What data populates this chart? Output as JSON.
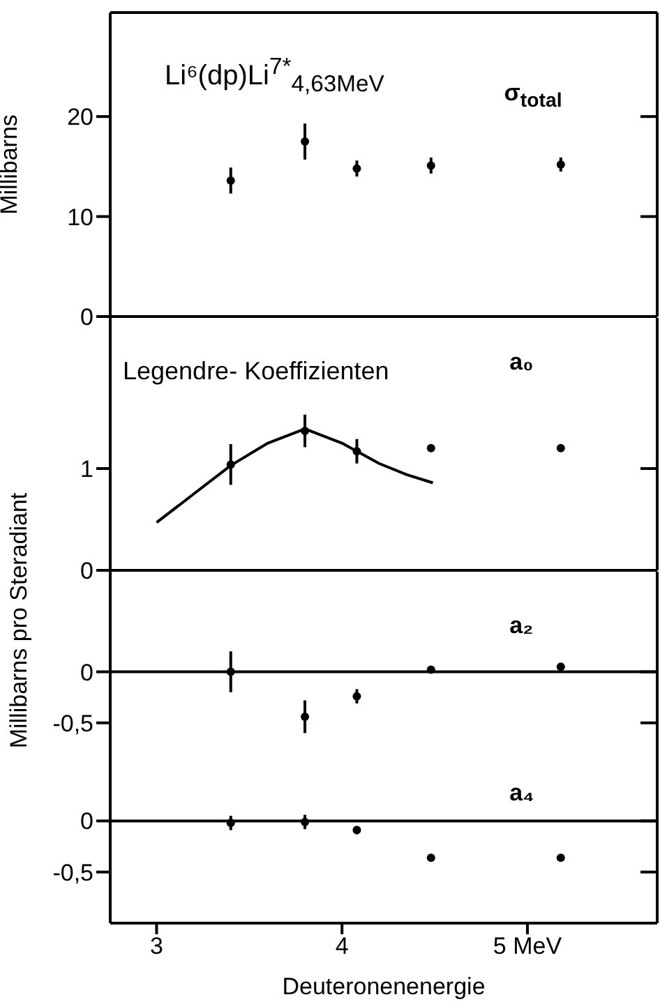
{
  "chart_data": [
    {
      "type": "scatter",
      "title": "Li⁶(dp)Li$^{7*}$$_{4,63MeV}$",
      "ylabel": "Millibarns",
      "x": [
        3.4,
        3.8,
        4.08,
        4.48,
        5.18
      ],
      "xlim": [
        2.75,
        5.7
      ],
      "xticks": [
        3,
        4,
        5
      ],
      "ylim": [
        0,
        30.4
      ],
      "yticks": [
        0,
        10,
        20
      ],
      "tick_labels": "y",
      "marker": "circle",
      "series": [
        {
          "name": "σ$_{total}$",
          "color": "#000000",
          "values": [
            13.6,
            17.5,
            14.8,
            15.1,
            15.2
          ],
          "errors": [
            1.3,
            1.8,
            0.8,
            0.8,
            0.7
          ]
        }
      ]
    },
    {
      "type": "scatter",
      "ylabel": "Millibarns pro Steradiant",
      "annotations": [
        "Legendre- Koeffizienten"
      ],
      "x": [
        3.4,
        3.8,
        4.08,
        4.48,
        5.18
      ],
      "xlim": [
        2.75,
        5.7
      ],
      "ylim": [
        0,
        2.48
      ],
      "yticks": [
        0,
        1
      ],
      "tick_labels": "y",
      "marker": "circle",
      "series": [
        {
          "name": "a₀",
          "color": "#000000",
          "values": [
            1.04,
            1.37,
            1.17,
            1.2,
            1.2
          ],
          "errors": [
            0.2,
            0.16,
            0.12,
            null,
            null
          ]
        },
        {
          "type": "line",
          "marker": "none",
          "color": "#000000",
          "x": [
            3.0,
            3.2,
            3.4,
            3.6,
            3.8,
            4.0,
            4.2,
            4.35,
            4.49
          ],
          "values": [
            0.47,
            0.75,
            1.03,
            1.25,
            1.39,
            1.25,
            1.05,
            0.94,
            0.86
          ]
        }
      ]
    },
    {
      "type": "scatter",
      "x": [
        3.4,
        3.8,
        4.08,
        4.48,
        5.18
      ],
      "xlim": [
        2.75,
        5.7
      ],
      "ylim": [
        -1.0,
        0.98
      ],
      "yticks": [
        0,
        {
          "value": -0.5,
          "label": "-0,5"
        }
      ],
      "tick_labels": "y",
      "marker": "circle",
      "ref_lines": [
        {
          "axis": "y",
          "value": 0
        }
      ],
      "series": [
        {
          "name": "a₂",
          "color": "#000000",
          "values": [
            0,
            -0.44,
            -0.24,
            0.02,
            0.05
          ],
          "errors": [
            0.2,
            0.16,
            0.07,
            null,
            null
          ]
        }
      ]
    },
    {
      "type": "scatter",
      "xlabel": "Deuteronenenergie",
      "x": [
        3.4,
        3.8,
        4.08,
        4.48,
        5.18
      ],
      "xlim": [
        2.75,
        5.7
      ],
      "xticks": [
        3,
        4,
        {
          "value": 5,
          "label": "5 MeV"
        }
      ],
      "ylim": [
        -1.0,
        0.46
      ],
      "yticks": [
        0,
        {
          "value": -0.5,
          "label": "-0,5"
        }
      ],
      "marker": "circle",
      "ref_lines": [
        {
          "axis": "y",
          "value": 0
        }
      ],
      "series": [
        {
          "name": "a₄",
          "color": "#000000",
          "values": [
            -0.02,
            -0.01,
            -0.09,
            -0.36,
            -0.36
          ],
          "errors": [
            0.07,
            0.07,
            0.04,
            null,
            null
          ]
        }
      ]
    }
  ]
}
